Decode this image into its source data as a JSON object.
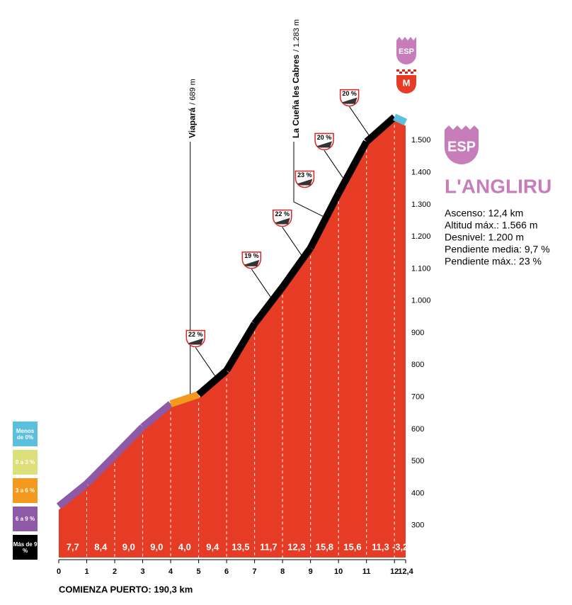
{
  "chart_data": {
    "type": "area",
    "title": "L'ANGLIRU",
    "badge": "ESP",
    "finish_badges": [
      "ESP",
      "M"
    ],
    "stats": [
      "Ascenso: 12,4 km",
      "Altitud máx.: 1.566 m",
      "Desnivel: 1.200 m",
      "Pendiente media: 9,7 %",
      "Pendiente máx.: 23 %"
    ],
    "x_label": "COMIENZA PUERTO: 190,3 km",
    "x": [
      0,
      1,
      2,
      3,
      4,
      5,
      6,
      7,
      8,
      9,
      10,
      11,
      12,
      12.4
    ],
    "values": [
      349,
      419,
      507,
      596,
      668,
      697,
      772,
      918,
      1032,
      1154,
      1324,
      1485,
      1562,
      1546
    ],
    "color": "#e63b24",
    "xlim": [
      0,
      12.4
    ],
    "xticks": [
      0,
      1,
      2,
      3,
      4,
      5,
      6,
      7,
      8,
      9,
      10,
      11,
      12,
      {
        "value": 12.4,
        "label": "12,4"
      }
    ],
    "ylim": [
      200,
      1600
    ],
    "yticks": [
      300,
      400,
      500,
      600,
      700,
      800,
      900,
      {
        "value": 1000,
        "label": "1.000"
      },
      {
        "value": 1100,
        "label": "1.100"
      },
      {
        "value": 1200,
        "label": "1.200"
      },
      {
        "value": 1300,
        "label": "1.300"
      },
      {
        "value": 1400,
        "label": "1.400"
      },
      {
        "value": 1500,
        "label": "1.500"
      }
    ],
    "segments": {
      "gradients": [
        7.7,
        8.4,
        9.0,
        9.0,
        4.0,
        9.4,
        13.5,
        11.7,
        12.3,
        15.8,
        15.6,
        11.3,
        -3.2
      ],
      "value_labels": [
        "7,7",
        "8,4",
        "9,0",
        "9,0",
        "4,0",
        "9,4",
        "13,5",
        "11,7",
        "12,3",
        "15,8",
        "15,6",
        "11,3",
        "-3,2"
      ],
      "strip_colors": [
        "#8e5aa8",
        "#8e5aa8",
        "#8e5aa8",
        "#8e5aa8",
        "#f39a1e",
        "#000000",
        "#000000",
        "#000000",
        "#000000",
        "#000000",
        "#000000",
        "#000000",
        "#5bc0de"
      ]
    },
    "passes": [
      {
        "name": "La Cueña les Cabres",
        "altitude_label": "/ 1.283 m",
        "km": 9.5
      },
      {
        "name": "Viapará",
        "altitude_label": "/ 689 m",
        "km": 4.7
      }
    ],
    "gradient_badges": [
      {
        "label": "22 %",
        "km": 5.6
      },
      {
        "label": "19 %",
        "km": 7.6
      },
      {
        "label": "22 %",
        "km": 8.7
      },
      {
        "label": "23 %",
        "km": 9.5
      },
      {
        "label": "20 %",
        "km": 10.2
      },
      {
        "label": "20 %",
        "km": 11.1
      }
    ],
    "legend": [
      {
        "name": "Menos de 0%",
        "color": "#5bc0de"
      },
      {
        "name": "0 a 3 %",
        "color": "#dde07a"
      },
      {
        "name": "3 a 6 %",
        "color": "#f39a1e"
      },
      {
        "name": "6 a 9 %",
        "color": "#8e5aa8"
      },
      {
        "name": "Más de 9 %",
        "color": "#000000"
      }
    ]
  }
}
